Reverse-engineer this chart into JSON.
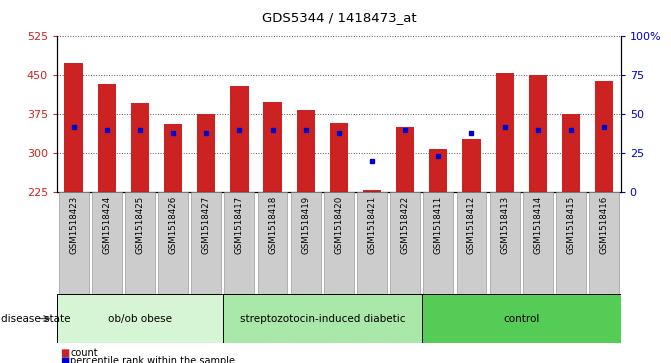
{
  "title": "GDS5344 / 1418473_at",
  "samples": [
    "GSM1518423",
    "GSM1518424",
    "GSM1518425",
    "GSM1518426",
    "GSM1518427",
    "GSM1518417",
    "GSM1518418",
    "GSM1518419",
    "GSM1518420",
    "GSM1518421",
    "GSM1518422",
    "GSM1518411",
    "GSM1518412",
    "GSM1518413",
    "GSM1518414",
    "GSM1518415",
    "GSM1518416"
  ],
  "counts": [
    473,
    433,
    397,
    357,
    375,
    430,
    398,
    383,
    358,
    230,
    350,
    308,
    328,
    455,
    450,
    375,
    440
  ],
  "percentile_ranks": [
    42,
    40,
    40,
    38,
    38,
    40,
    40,
    40,
    38,
    20,
    40,
    23,
    38,
    42,
    40,
    40,
    42
  ],
  "baseline": 225,
  "ylim_left": [
    225,
    525
  ],
  "ylim_right": [
    0,
    100
  ],
  "yticks_left": [
    225,
    300,
    375,
    450,
    525
  ],
  "yticks_right": [
    0,
    25,
    50,
    75,
    100
  ],
  "groups": [
    {
      "label": "ob/ob obese",
      "start": 0,
      "end": 5,
      "color": "#d5f5d5"
    },
    {
      "label": "streptozotocin-induced diabetic",
      "start": 5,
      "end": 11,
      "color": "#aae8aa"
    },
    {
      "label": "control",
      "start": 11,
      "end": 17,
      "color": "#55cc55"
    }
  ],
  "bar_color": "#cc2222",
  "dot_color": "#0000cc",
  "col_bg_color": "#cccccc",
  "plot_bg": "#ffffff",
  "left_tick_color": "#cc2222",
  "right_tick_color": "#0000cc",
  "legend_count_color": "#cc2222",
  "legend_dot_color": "#0000cc",
  "grid_color": "#555555"
}
